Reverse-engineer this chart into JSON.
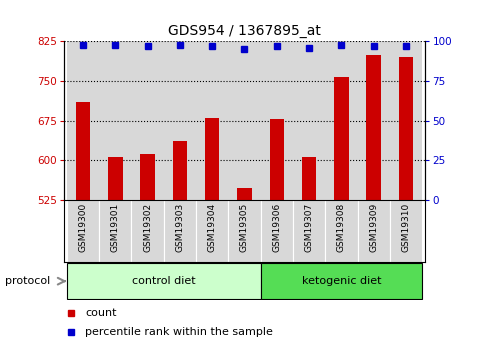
{
  "title": "GDS954 / 1367895_at",
  "samples": [
    "GSM19300",
    "GSM19301",
    "GSM19302",
    "GSM19303",
    "GSM19304",
    "GSM19305",
    "GSM19306",
    "GSM19307",
    "GSM19308",
    "GSM19309",
    "GSM19310"
  ],
  "bar_values": [
    710,
    607,
    613,
    637,
    681,
    548,
    679,
    607,
    757,
    800,
    795
  ],
  "percentile_values": [
    98,
    98,
    97,
    98,
    97,
    95,
    97,
    96,
    98,
    97,
    97
  ],
  "ylim_left": [
    525,
    825
  ],
  "ylim_right": [
    0,
    100
  ],
  "yticks_left": [
    525,
    600,
    675,
    750,
    825
  ],
  "yticks_right": [
    0,
    25,
    50,
    75,
    100
  ],
  "bar_color": "#cc0000",
  "dot_color": "#0000cc",
  "control_diet_color": "#ccffcc",
  "ketogenic_diet_color": "#55dd55",
  "control_diet_label": "control diet",
  "ketogenic_diet_label": "ketogenic diet",
  "protocol_label": "protocol",
  "count_label": "count",
  "percentile_label": "percentile rank within the sample",
  "control_indices": [
    0,
    1,
    2,
    3,
    4,
    5
  ],
  "ketogenic_indices": [
    6,
    7,
    8,
    9,
    10
  ],
  "bg_color": "#d8d8d8",
  "plot_bg": "#ffffff"
}
